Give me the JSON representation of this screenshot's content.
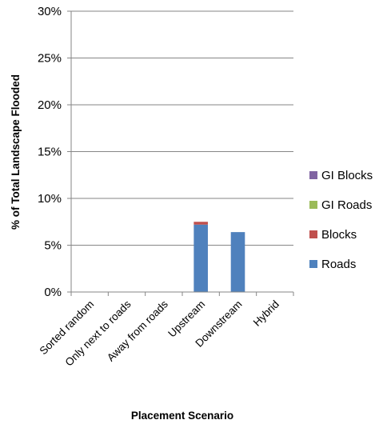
{
  "chart_data": {
    "type": "bar",
    "stacked": true,
    "categories": [
      "Sorted random",
      "Only next to roads",
      "Away from roads",
      "Upstream",
      "Downstream",
      "Hybrid"
    ],
    "series": [
      {
        "name": "Roads",
        "color": "#4f81bd",
        "values": [
          0,
          0,
          0,
          7.2,
          6.4,
          0
        ]
      },
      {
        "name": "Blocks",
        "color": "#c0504d",
        "values": [
          0,
          0,
          0,
          0.3,
          0,
          0
        ]
      },
      {
        "name": "GI Roads",
        "color": "#9bbb59",
        "values": [
          0,
          0,
          0,
          0,
          0,
          0
        ]
      },
      {
        "name": "GI Blocks",
        "color": "#8064a2",
        "values": [
          0,
          0,
          0,
          0,
          0,
          0
        ]
      }
    ],
    "xlabel": "Placement Scenario",
    "ylabel": "% of Total Landscape Flooded",
    "ylim": [
      0,
      30
    ],
    "yticks": [
      "0%",
      "5%",
      "10%",
      "15%",
      "20%",
      "25%",
      "30%"
    ],
    "grid": true,
    "legend_position": "right"
  }
}
